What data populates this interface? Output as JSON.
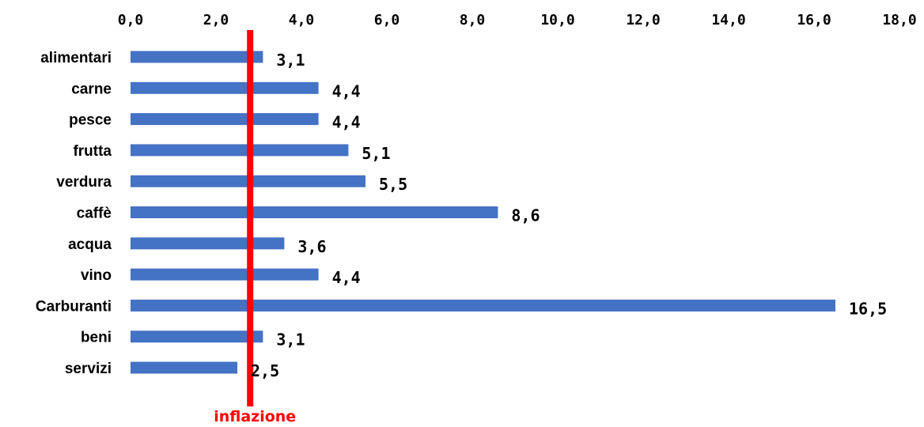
{
  "chart_data": {
    "type": "bar",
    "orientation": "horizontal",
    "x_axis_position": "top",
    "xlim": [
      0,
      18
    ],
    "xticks": [
      0,
      2,
      4,
      6,
      8,
      10,
      12,
      14,
      16,
      18
    ],
    "xtick_labels": [
      "0,0",
      "2,0",
      "4,0",
      "6,0",
      "8,0",
      "10,0",
      "12,0",
      "14,0",
      "16,0",
      "18,0"
    ],
    "categories": [
      "alimentari",
      "carne",
      "pesce",
      "frutta",
      "verdura",
      "caffè",
      "acqua",
      "vino",
      "Carburanti",
      "beni",
      "servizi"
    ],
    "values": [
      3.1,
      4.4,
      4.4,
      5.1,
      5.5,
      8.6,
      3.6,
      4.4,
      16.5,
      3.1,
      2.5
    ],
    "value_labels": [
      "3,1",
      "4,4",
      "4,4",
      "5,1",
      "5,5",
      "8,6",
      "3,6",
      "4,4",
      "16,5",
      "3,1",
      "2,5"
    ],
    "grid": false,
    "legend": "none",
    "reference_line": {
      "value": 2.8,
      "label": "inflazione",
      "color": "#ff0000"
    },
    "colors": {
      "bar": "#4472c4",
      "reference": "#ff0000",
      "highlight_label": "#ff0000",
      "text": "#000000"
    },
    "highlight_label_index": 10
  }
}
